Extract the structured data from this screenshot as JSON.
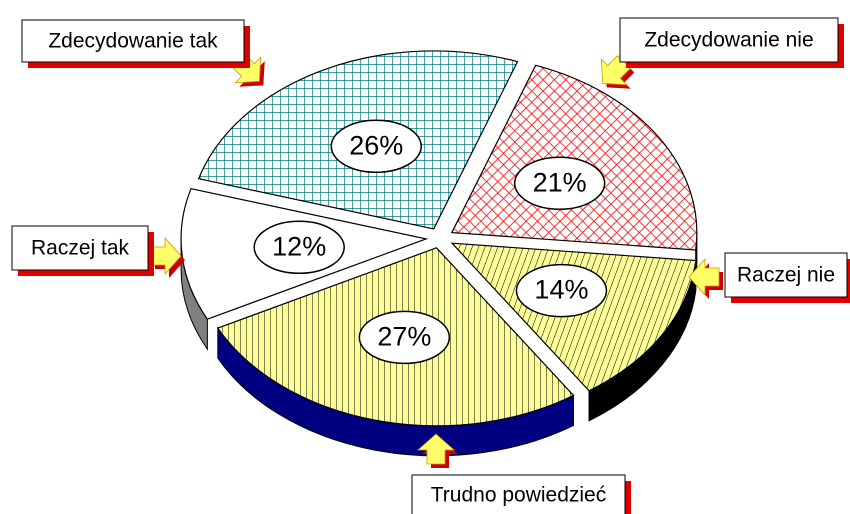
{
  "chart_data": {
    "type": "pie",
    "categories": [
      "Zdecydowanie tak",
      "Zdecydowanie nie",
      "Raczej nie",
      "Trudno powiedzieć",
      "Raczej tak"
    ],
    "values": [
      21,
      14,
      27,
      12,
      26
    ],
    "value_labels": [
      "21%",
      "14%",
      "27%",
      "12%",
      "26%"
    ],
    "colors": [
      "#ff0000",
      "#ffff99",
      "#ffff99",
      "#ffffff",
      "#008080"
    ]
  }
}
